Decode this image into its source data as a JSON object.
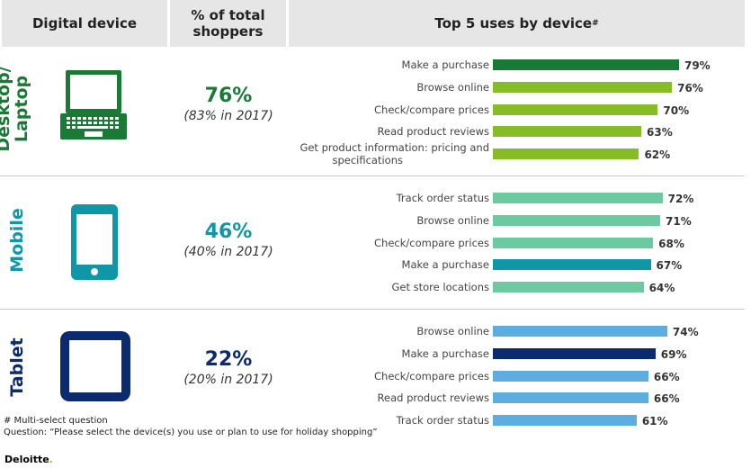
{
  "header": {
    "device": "Digital device",
    "percent_line1": "% of total",
    "percent_line2": "shoppers",
    "uses": "Top 5 uses by device",
    "uses_mark": "#"
  },
  "colors": {
    "desktop_dark": "#187a35",
    "desktop_light": "#86bc25",
    "mobile_dark": "#0f97a8",
    "mobile_light": "#6cc9a0",
    "tablet_dark": "#0c2b6e",
    "tablet_light": "#5daee0"
  },
  "sections": [
    {
      "label_line1": "Desktop/",
      "label_line2": "Laptop",
      "icon": "laptop-icon",
      "share": "76%",
      "prior": "(83% in 2017)"
    },
    {
      "label_line1": "Mobile",
      "label_line2": "",
      "icon": "smartphone-icon",
      "share": "46%",
      "prior": "(40% in 2017)"
    },
    {
      "label_line1": "Tablet",
      "label_line2": "",
      "icon": "tablet-icon",
      "share": "22%",
      "prior": "(20% in 2017)"
    }
  ],
  "chart_data": [
    {
      "type": "bar",
      "orientation": "horizontal",
      "categories": [
        "Make a purchase",
        "Browse online",
        "Check/compare prices",
        "Read product reviews",
        "Get product information: pricing and specifications"
      ],
      "values": [
        79,
        76,
        70,
        63,
        62
      ],
      "value_labels": [
        "79%",
        "76%",
        "70%",
        "63%",
        "62%"
      ],
      "highlight": [
        true,
        false,
        false,
        false,
        false
      ]
    },
    {
      "type": "bar",
      "orientation": "horizontal",
      "categories": [
        "Track order status",
        "Browse online",
        "Check/compare prices",
        "Make a purchase",
        "Get store locations"
      ],
      "values": [
        72,
        71,
        68,
        67,
        64
      ],
      "value_labels": [
        "72%",
        "71%",
        "68%",
        "67%",
        "64%"
      ],
      "highlight": [
        false,
        false,
        false,
        true,
        false
      ]
    },
    {
      "type": "bar",
      "orientation": "horizontal",
      "categories": [
        "Browse online",
        "Make a purchase",
        "Check/compare prices",
        "Read product reviews",
        "Track order status"
      ],
      "values": [
        74,
        69,
        66,
        66,
        61
      ],
      "value_labels": [
        "74%",
        "69%",
        "66%",
        "66%",
        "61%"
      ],
      "highlight": [
        false,
        true,
        false,
        false,
        false
      ]
    }
  ],
  "footnotes": {
    "multi": "# Multi-select question",
    "question": "Question: “Please select the device(s) you use or plan to use for holiday shopping”"
  },
  "brand": "Deloitte",
  "brand_dot": "."
}
